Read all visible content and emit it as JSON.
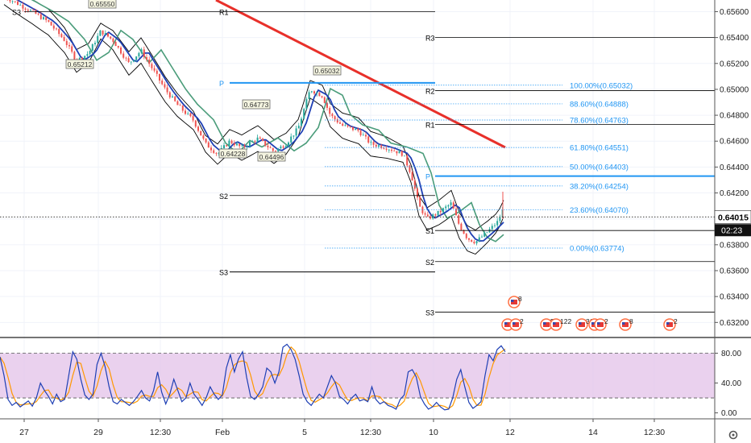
{
  "chart_data": {
    "type": "candlestick",
    "price_axis": {
      "ticks": [
        "0.65600",
        "0.65400",
        "0.65200",
        "0.65000",
        "0.64800",
        "0.64600",
        "0.64400",
        "0.64200",
        "0.64000",
        "0.63800",
        "0.63600",
        "0.63400",
        "0.63200"
      ],
      "range": [
        0.6309,
        0.6569
      ],
      "current_price": "0.64015",
      "current_price_value": 0.64015,
      "countdown": "02:23"
    },
    "time_axis": {
      "labels": [
        "27",
        "29",
        "12:30",
        "Feb",
        "5",
        "12:30",
        "10",
        "12",
        "14",
        "12:30"
      ]
    },
    "pivot_levels": [
      {
        "label": "R1",
        "value": 0.656
      },
      {
        "label": "P",
        "value": 0.6505
      },
      {
        "label": "S2",
        "value": 0.6418
      },
      {
        "label": "S3",
        "value": 0.6359
      },
      {
        "label": "R3",
        "value": 0.654
      },
      {
        "label": "R2",
        "value": 0.6499
      },
      {
        "label": "R1",
        "value": 0.6473
      },
      {
        "label": "P",
        "value": 0.6433
      },
      {
        "label": "S1",
        "value": 0.6391
      },
      {
        "label": "S2",
        "value": 0.6367
      },
      {
        "label": "S3",
        "value": 0.6328
      },
      {
        "label": "S3",
        "value": 0.656
      }
    ],
    "fibonacci": [
      {
        "label": "100.00%(0.65032)",
        "value": 0.65032
      },
      {
        "label": "88.60%(0.64888)",
        "value": 0.64888
      },
      {
        "label": "78.60%(0.64763)",
        "value": 0.64763
      },
      {
        "label": "61.80%(0.64551)",
        "value": 0.64551
      },
      {
        "label": "50.00%(0.64403)",
        "value": 0.64403
      },
      {
        "label": "38.20%(0.64254)",
        "value": 0.64254
      },
      {
        "label": "23.60%(0.64070)",
        "value": 0.6407
      },
      {
        "label": "0.00%(0.63774)",
        "value": 0.63774
      }
    ],
    "price_labels": [
      "0.65550",
      "0.65212",
      "0.64773",
      "0.64228",
      "0.64496",
      "0.65032"
    ],
    "events": [
      "8",
      "22",
      "2",
      "5",
      "122",
      "36",
      "1",
      "2",
      "8",
      "2"
    ],
    "oscillator": {
      "ticks": [
        "80.00",
        "40.00",
        "0.00"
      ],
      "range": [
        -8,
        100
      ],
      "overbought": 80,
      "oversold": 20,
      "k_values": [
        75,
        50,
        18,
        10,
        14,
        8,
        12,
        16,
        9,
        20,
        40,
        30,
        22,
        12,
        25,
        15,
        18,
        50,
        82,
        72,
        45,
        24,
        18,
        25,
        65,
        80,
        62,
        35,
        15,
        12,
        18,
        14,
        10,
        15,
        22,
        30,
        20,
        16,
        30,
        55,
        28,
        12,
        25,
        45,
        30,
        15,
        20,
        40,
        25,
        18,
        10,
        20,
        35,
        25,
        18,
        24,
        60,
        78,
        55,
        72,
        82,
        48,
        22,
        18,
        25,
        35,
        60,
        55,
        40,
        55,
        88,
        92,
        85,
        72,
        50,
        25,
        15,
        10,
        18,
        25,
        20,
        35,
        50,
        40,
        22,
        18,
        12,
        20,
        25,
        16,
        18,
        15,
        35,
        18,
        12,
        15,
        10,
        8,
        5,
        18,
        24,
        55,
        58,
        48,
        22,
        12,
        5,
        8,
        14,
        8,
        4,
        5,
        20,
        45,
        58,
        35,
        14,
        6,
        10,
        15,
        50,
        78,
        70,
        85,
        90,
        82
      ]
    }
  }
}
